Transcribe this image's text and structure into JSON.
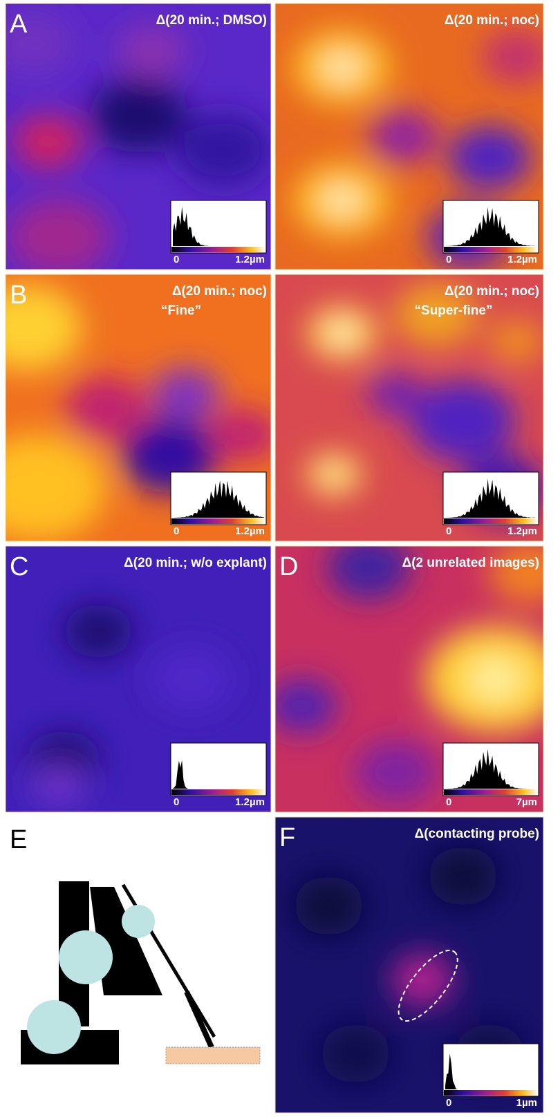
{
  "panels": [
    {
      "letter": "A",
      "title": "Δ(20 min.; DMSO)",
      "hist": {
        "min": "0",
        "max": "1.2µm"
      }
    },
    {
      "title": "Δ(20 min.; noc)",
      "hist": {
        "min": "0",
        "max": "1.2µm"
      }
    },
    {
      "letter": "B",
      "title": "Δ(20 min.; noc)",
      "subtitle": "“Fine”",
      "hist": {
        "min": "0",
        "max": "1.2µm"
      }
    },
    {
      "title": "Δ(20 min.; noc)",
      "subtitle": "“Super-fine”",
      "hist": {
        "min": "0",
        "max": "1.2µm"
      }
    },
    {
      "letter": "C",
      "title": "Δ(20 min.; w/o explant)",
      "hist": {
        "min": "0",
        "max": "1.2µm"
      }
    },
    {
      "letter": "D",
      "title": "Δ(2 unrelated images)",
      "hist": {
        "min": "0",
        "max": "7µm"
      }
    },
    {
      "letter": "E"
    },
    {
      "letter": "F",
      "title": "Δ(contacting probe)",
      "hist": {
        "min": "0",
        "max": "1µm"
      }
    }
  ]
}
